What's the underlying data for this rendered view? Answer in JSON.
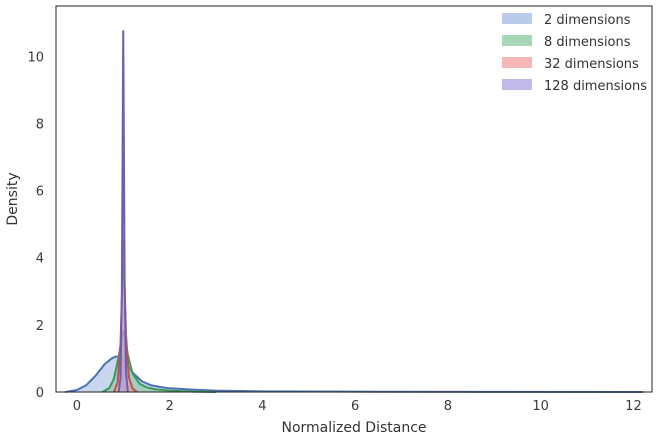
{
  "chart_data": {
    "type": "area",
    "title": "",
    "xlabel": "Normalized Distance",
    "ylabel": "Density",
    "xlim": [
      -0.45,
      12.4
    ],
    "ylim": [
      0,
      11.5
    ],
    "xticks": [
      0,
      2,
      4,
      6,
      8,
      10,
      12
    ],
    "yticks": [
      0,
      2,
      4,
      6,
      8,
      10
    ],
    "grid": false,
    "legend_position": "top-right",
    "series": [
      {
        "name": "2 dimensions",
        "color": "#4c72b0",
        "fill": "#9db6e0",
        "points": [
          [
            -0.25,
            0.0
          ],
          [
            0.0,
            0.06
          ],
          [
            0.2,
            0.2
          ],
          [
            0.4,
            0.48
          ],
          [
            0.6,
            0.83
          ],
          [
            0.75,
            1.0
          ],
          [
            0.85,
            1.06
          ],
          [
            0.95,
            1.03
          ],
          [
            1.05,
            0.88
          ],
          [
            1.2,
            0.58
          ],
          [
            1.4,
            0.32
          ],
          [
            1.6,
            0.2
          ],
          [
            1.8,
            0.15
          ],
          [
            2.0,
            0.11
          ],
          [
            2.5,
            0.07
          ],
          [
            3.0,
            0.04
          ],
          [
            4.0,
            0.02
          ],
          [
            6.0,
            0.01
          ],
          [
            9.0,
            0.005
          ],
          [
            12.2,
            0.0
          ]
        ]
      },
      {
        "name": "8 dimensions",
        "color": "#3b9a5b",
        "fill": "#82c796",
        "points": [
          [
            0.55,
            0.0
          ],
          [
            0.7,
            0.12
          ],
          [
            0.8,
            0.4
          ],
          [
            0.9,
            1.05
          ],
          [
            0.97,
            1.62
          ],
          [
            1.0,
            1.82
          ],
          [
            1.03,
            1.7
          ],
          [
            1.1,
            1.1
          ],
          [
            1.2,
            0.55
          ],
          [
            1.35,
            0.25
          ],
          [
            1.5,
            0.14
          ],
          [
            1.7,
            0.08
          ],
          [
            2.0,
            0.04
          ],
          [
            2.5,
            0.01
          ],
          [
            3.0,
            0.0
          ]
        ]
      },
      {
        "name": "32 dimensions",
        "color": "#c44e52",
        "fill": "#f29a98",
        "points": [
          [
            0.8,
            0.0
          ],
          [
            0.88,
            0.3
          ],
          [
            0.94,
            1.4
          ],
          [
            0.98,
            3.2
          ],
          [
            1.0,
            4.55
          ],
          [
            1.02,
            3.6
          ],
          [
            1.06,
            1.7
          ],
          [
            1.12,
            0.45
          ],
          [
            1.2,
            0.1
          ],
          [
            1.3,
            0.0
          ]
        ]
      },
      {
        "name": "128 dimensions",
        "color": "#6a5fb0",
        "fill": "#a79be0",
        "points": [
          [
            0.9,
            0.0
          ],
          [
            0.94,
            0.4
          ],
          [
            0.97,
            3.0
          ],
          [
            0.99,
            8.2
          ],
          [
            1.0,
            10.75
          ],
          [
            1.01,
            8.3
          ],
          [
            1.03,
            3.2
          ],
          [
            1.06,
            0.55
          ],
          [
            1.1,
            0.0
          ]
        ]
      }
    ]
  }
}
